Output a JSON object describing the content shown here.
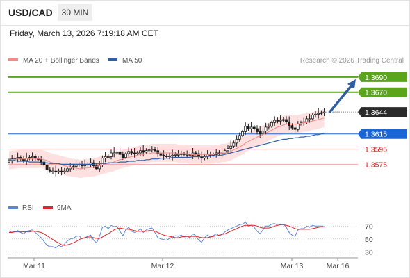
{
  "header": {
    "symbol": "USD/CAD",
    "timeframe": "30 MIN",
    "timestamp": "Friday, March 13, 2026 7:19:18 AM CET"
  },
  "credit": "Research © 2026 Trading Central",
  "legend": [
    {
      "label": "MA 20 + Bollinger Bands",
      "color": "#f28b86"
    },
    {
      "label": "MA 50",
      "color": "#2e5fa8"
    }
  ],
  "rsi_legend": [
    {
      "label": "RSI",
      "color": "#5b86d6"
    },
    {
      "label": "9MA",
      "color": "#e0262b"
    }
  ],
  "colors": {
    "up_candle": "#ffffff",
    "down_candle": "#1a1a1a",
    "target_line": "#5aa51c",
    "pivot_line": "#1a66d6",
    "support_line": "#f2a3a3",
    "support_text": "#cc2020",
    "price_tag": "#2b2b2b",
    "arrow": "#2f5fa0",
    "band_fill": "#fbdcda"
  },
  "chart_data": [
    {
      "type": "candlestick",
      "title": "USD/CAD 30 MIN",
      "x_axis_labels": [
        "Mar 11",
        "Mar 12",
        "Mar 13",
        "Mar 16"
      ],
      "ylim": [
        1.3535,
        1.37
      ],
      "current_price": 1.3644,
      "levels": [
        {
          "value": 1.369,
          "label": "1.3690",
          "role": "target"
        },
        {
          "value": 1.367,
          "label": "1.3670",
          "role": "target"
        },
        {
          "value": 1.3615,
          "label": "1.3615",
          "role": "pivot"
        },
        {
          "value": 1.3595,
          "label": "1.3595",
          "role": "support"
        },
        {
          "value": 1.3575,
          "label": "1.3575",
          "role": "support"
        }
      ],
      "close_series": [
        1.358,
        1.3582,
        1.3583,
        1.3584,
        1.3582,
        1.358,
        1.3583,
        1.3584,
        1.3585,
        1.3583,
        1.3581,
        1.3578,
        1.3574,
        1.3568,
        1.3566,
        1.3566,
        1.3565,
        1.3566,
        1.3565,
        1.3566,
        1.3569,
        1.3571,
        1.3572,
        1.3574,
        1.3575,
        1.3573,
        1.3574,
        1.3575,
        1.3577,
        1.3573,
        1.3569,
        1.3574,
        1.3583,
        1.3585,
        1.3585,
        1.359,
        1.359,
        1.3591,
        1.3588,
        1.3584,
        1.3589,
        1.3592,
        1.359,
        1.3589,
        1.359,
        1.3593,
        1.3591,
        1.3593,
        1.3594,
        1.3595,
        1.3593,
        1.3589,
        1.3587,
        1.3586,
        1.3585,
        1.3586,
        1.3587,
        1.3588,
        1.3588,
        1.3589,
        1.3588,
        1.3588,
        1.3587,
        1.359,
        1.3589,
        1.3585,
        1.3583,
        1.3586,
        1.3588,
        1.3587,
        1.3588,
        1.359,
        1.3589,
        1.359,
        1.3593,
        1.3596,
        1.3599,
        1.3603,
        1.3608,
        1.3613,
        1.3618,
        1.3625,
        1.3622,
        1.3624,
        1.3622,
        1.3618,
        1.3615,
        1.3619,
        1.3624,
        1.3625,
        1.363,
        1.3633,
        1.3632,
        1.3633,
        1.3634,
        1.3631,
        1.3626,
        1.3623,
        1.3621,
        1.3628,
        1.363,
        1.3631,
        1.3635,
        1.3635,
        1.364,
        1.3641,
        1.3642,
        1.3643,
        1.3644
      ],
      "ma20_series": [
        1.358,
        1.3581,
        1.3581,
        1.3582,
        1.3582,
        1.3582,
        1.3582,
        1.3582,
        1.3582,
        1.3582,
        1.3582,
        1.3582,
        1.3581,
        1.358,
        1.3578,
        1.3577,
        1.3576,
        1.3575,
        1.3574,
        1.3573,
        1.3572,
        1.3571,
        1.357,
        1.357,
        1.3569,
        1.3569,
        1.357,
        1.357,
        1.3571,
        1.3571,
        1.3572,
        1.3573,
        1.3574,
        1.3575,
        1.3576,
        1.3577,
        1.3578,
        1.358,
        1.3581,
        1.3582,
        1.3583,
        1.3584,
        1.3585,
        1.3586,
        1.3587,
        1.3588,
        1.3588,
        1.3589,
        1.3589,
        1.359,
        1.359,
        1.359,
        1.359,
        1.359,
        1.359,
        1.359,
        1.359,
        1.359,
        1.3589,
        1.3589,
        1.3589,
        1.3589,
        1.3588,
        1.3588,
        1.3588,
        1.3588,
        1.3588,
        1.3588,
        1.3588,
        1.3588,
        1.3588,
        1.3589,
        1.3589,
        1.359,
        1.359,
        1.3591,
        1.3592,
        1.3594,
        1.3596,
        1.3598,
        1.36,
        1.3603,
        1.3605,
        1.3607,
        1.3609,
        1.3611,
        1.3612,
        1.3614,
        1.3616,
        1.3618,
        1.362,
        1.3622,
        1.3624,
        1.3625,
        1.3627,
        1.3628,
        1.3628,
        1.3628,
        1.3628,
        1.3628,
        1.3629,
        1.363,
        1.363,
        1.3631,
        1.3632,
        1.3633,
        1.3634,
        1.3635,
        1.3636
      ],
      "ma50_series": [
        1.358,
        1.358,
        1.358,
        1.3579,
        1.3579,
        1.3579,
        1.3579,
        1.3578,
        1.3578,
        1.3578,
        1.3578,
        1.3577,
        1.3577,
        1.3577,
        1.3576,
        1.3576,
        1.3576,
        1.3576,
        1.3575,
        1.3575,
        1.3575,
        1.3575,
        1.3575,
        1.3575,
        1.3575,
        1.3575,
        1.3575,
        1.3575,
        1.3575,
        1.3575,
        1.3576,
        1.3576,
        1.3576,
        1.3576,
        1.3577,
        1.3577,
        1.3577,
        1.3577,
        1.3578,
        1.3578,
        1.3578,
        1.3579,
        1.3579,
        1.3579,
        1.358,
        1.358,
        1.358,
        1.3581,
        1.3581,
        1.3582,
        1.3582,
        1.3582,
        1.3583,
        1.3583,
        1.3583,
        1.3583,
        1.3584,
        1.3584,
        1.3584,
        1.3584,
        1.3584,
        1.3584,
        1.3584,
        1.3585,
        1.3585,
        1.3585,
        1.3585,
        1.3585,
        1.3585,
        1.3586,
        1.3586,
        1.3586,
        1.3587,
        1.3587,
        1.3588,
        1.3589,
        1.359,
        1.3591,
        1.3592,
        1.3593,
        1.3594,
        1.3595,
        1.3596,
        1.3597,
        1.3598,
        1.3599,
        1.36,
        1.3601,
        1.3602,
        1.3603,
        1.3604,
        1.3605,
        1.3606,
        1.3607,
        1.3608,
        1.3608,
        1.3609,
        1.3609,
        1.361,
        1.361,
        1.3611,
        1.3611,
        1.3612,
        1.3612,
        1.3613,
        1.3614,
        1.3614,
        1.3615,
        1.3616
      ],
      "band_width": 0.0012,
      "projection": {
        "from": 1.3644,
        "to": 1.369
      }
    },
    {
      "type": "line",
      "title": "RSI",
      "ylim": [
        25,
        80
      ],
      "y_ticks": [
        70,
        50,
        30
      ],
      "x_axis_labels": [
        "Mar 11",
        "Mar 12",
        "Mar 13",
        "Mar 16"
      ],
      "rsi_series": [
        60,
        62,
        61,
        63,
        60,
        58,
        62,
        63,
        64,
        60,
        56,
        52,
        46,
        40,
        38,
        38,
        36,
        40,
        38,
        42,
        47,
        50,
        51,
        54,
        55,
        50,
        52,
        54,
        56,
        48,
        44,
        54,
        68,
        70,
        66,
        71,
        69,
        70,
        62,
        55,
        64,
        68,
        62,
        60,
        62,
        66,
        60,
        64,
        66,
        67,
        60,
        52,
        50,
        49,
        48,
        51,
        53,
        55,
        54,
        56,
        53,
        54,
        52,
        58,
        55,
        48,
        45,
        52,
        56,
        53,
        55,
        58,
        55,
        57,
        61,
        64,
        66,
        68,
        70,
        72,
        73,
        76,
        70,
        71,
        68,
        62,
        58,
        64,
        70,
        70,
        73,
        74,
        71,
        72,
        73,
        68,
        60,
        56,
        54,
        64,
        66,
        66,
        70,
        68,
        71,
        70,
        70,
        70,
        69
      ],
      "ma9_series": [
        60,
        60,
        61,
        61,
        61,
        61,
        61,
        61,
        62,
        62,
        61,
        60,
        58,
        55,
        52,
        49,
        46,
        44,
        41,
        40,
        41,
        42,
        44,
        46,
        49,
        51,
        52,
        53,
        53,
        52,
        51,
        51,
        53,
        56,
        58,
        61,
        64,
        66,
        67,
        66,
        65,
        65,
        64,
        63,
        62,
        62,
        62,
        62,
        63,
        63,
        62,
        60,
        58,
        56,
        55,
        54,
        53,
        52,
        52,
        53,
        54,
        54,
        54,
        54,
        54,
        53,
        52,
        52,
        52,
        53,
        54,
        55,
        56,
        57,
        58,
        60,
        62,
        64,
        66,
        68,
        70,
        71,
        71,
        71,
        71,
        70,
        68,
        67,
        67,
        67,
        68,
        70,
        71,
        72,
        72,
        71,
        70,
        68,
        66,
        65,
        65,
        65,
        65,
        65,
        66,
        67,
        68,
        69,
        69
      ]
    }
  ]
}
